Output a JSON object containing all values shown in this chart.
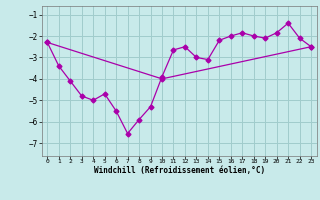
{
  "line1_x": [
    0,
    1,
    2,
    3,
    4,
    5,
    6,
    7,
    8,
    9,
    10,
    11,
    12,
    13,
    14,
    15,
    16,
    17,
    18,
    19,
    20,
    21,
    22,
    23
  ],
  "line1_y": [
    -2.3,
    -3.4,
    -4.1,
    -4.8,
    -5.0,
    -4.7,
    -5.5,
    -6.55,
    -5.9,
    -5.3,
    -3.9,
    -2.65,
    -2.5,
    -3.0,
    -3.1,
    -2.2,
    -2.0,
    -1.85,
    -2.0,
    -2.1,
    -1.85,
    -1.4,
    -2.1,
    -2.5
  ],
  "line2_x": [
    0,
    10,
    23
  ],
  "line2_y": [
    -2.3,
    -4.0,
    -2.5
  ],
  "color": "#aa00aa",
  "bg_color": "#c8eaea",
  "grid_color": "#a0cccc",
  "xlim": [
    -0.5,
    23.5
  ],
  "ylim": [
    -7.6,
    -0.6
  ],
  "yticks": [
    -7,
    -6,
    -5,
    -4,
    -3,
    -2,
    -1
  ],
  "xticks": [
    0,
    1,
    2,
    3,
    4,
    5,
    6,
    7,
    8,
    9,
    10,
    11,
    12,
    13,
    14,
    15,
    16,
    17,
    18,
    19,
    20,
    21,
    22,
    23
  ],
  "xlabel": "Windchill (Refroidissement éolien,°C)",
  "marker": "D",
  "markersize": 2.5,
  "linewidth": 0.9
}
